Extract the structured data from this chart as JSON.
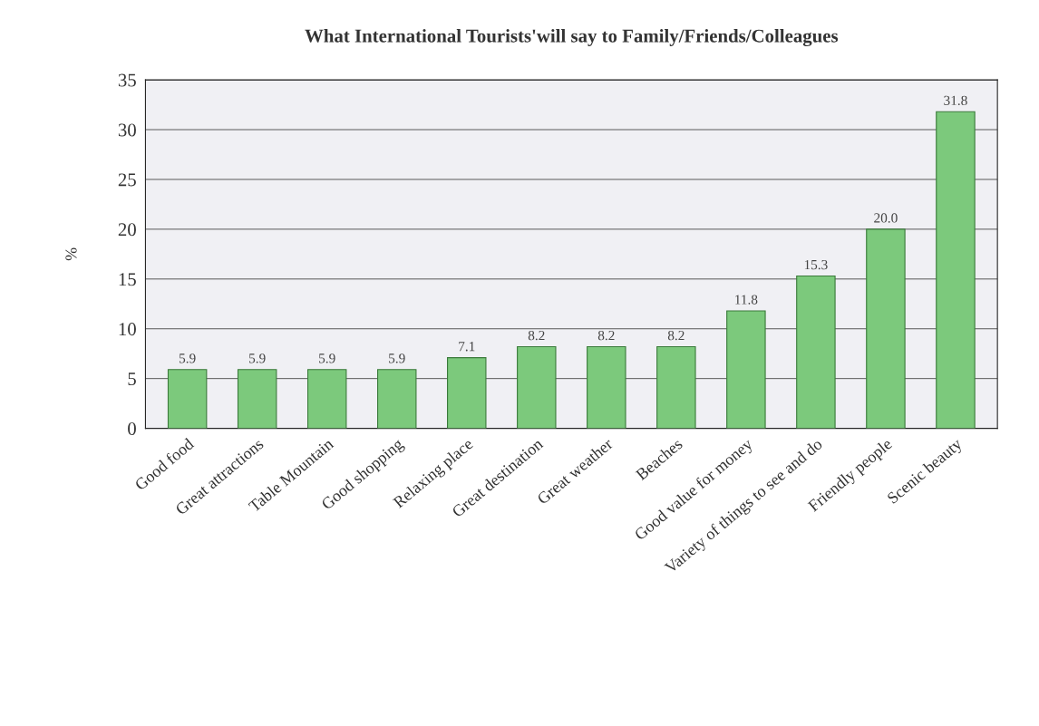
{
  "chart_data": {
    "type": "bar",
    "title": "What International Tourists'will say to Family/Friends/Colleagues",
    "ylabel": "%",
    "categories": [
      "Good food",
      "Great attractions",
      "Table Mountain",
      "Good shopping",
      "Relaxing place",
      "Great destination",
      "Great weather",
      "Beaches",
      "Good value for money",
      "Variety of things to see and do",
      "Friendly people",
      "Scenic beauty"
    ],
    "values": [
      5.9,
      5.9,
      5.9,
      5.9,
      7.1,
      8.2,
      8.2,
      8.2,
      11.8,
      15.3,
      20.0,
      31.8
    ],
    "value_labels": [
      "5.9",
      "5.9",
      "5.9",
      "5.9",
      "7.1",
      "8.2",
      "8.2",
      "8.2",
      "11.8",
      "15.3",
      "20.0",
      "31.8"
    ],
    "color": "#7cc97c",
    "ylim": [
      0,
      35
    ],
    "yticks": [
      0,
      5,
      10,
      15,
      20,
      25,
      30,
      35
    ],
    "grid": "y",
    "legend": false
  }
}
